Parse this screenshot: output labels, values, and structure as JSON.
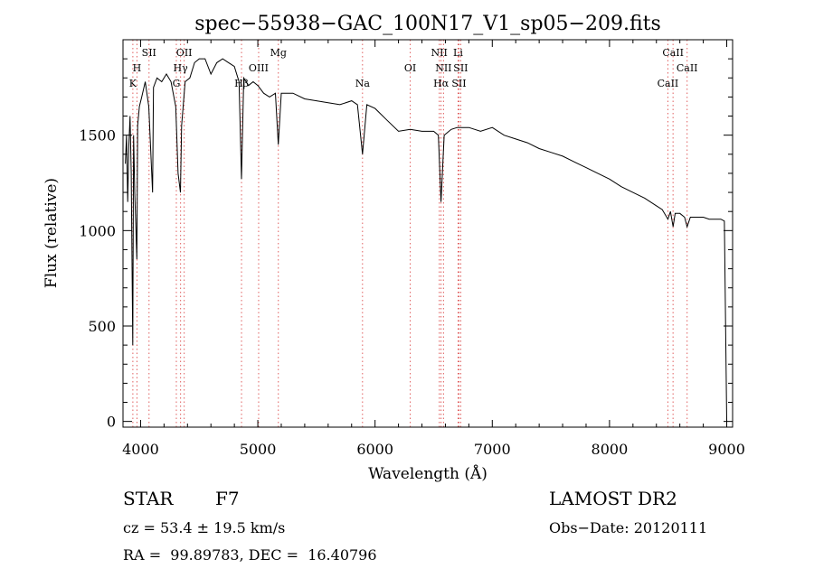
{
  "chart_data": {
    "type": "line",
    "title": "spec−55938−GAC_100N17_V1_sp05−209.fits",
    "xlabel": "Wavelength (Å)",
    "ylabel": "Flux (relative)",
    "xlim": [
      3850,
      9050
    ],
    "ylim": [
      -30,
      2000
    ],
    "x_ticks": [
      4000,
      5000,
      6000,
      7000,
      8000,
      9000
    ],
    "x_tick_labels": [
      "4000",
      "5000",
      "6000",
      "7000",
      "8000",
      "9000"
    ],
    "y_ticks": [
      0,
      500,
      1000,
      1500
    ],
    "y_tick_labels": [
      "0",
      "500",
      "1000",
      "1500"
    ],
    "grid": false,
    "series": [
      {
        "name": "flux",
        "x": [
          3870,
          3880,
          3890,
          3900,
          3910,
          3920,
          3933,
          3940,
          3950,
          3968,
          3975,
          3990,
          4010,
          4040,
          4070,
          4102,
          4110,
          4140,
          4180,
          4220,
          4260,
          4300,
          4320,
          4340,
          4350,
          4380,
          4420,
          4460,
          4500,
          4550,
          4600,
          4650,
          4700,
          4750,
          4800,
          4840,
          4861,
          4880,
          4920,
          4960,
          5000,
          5050,
          5100,
          5150,
          5175,
          5200,
          5250,
          5300,
          5400,
          5500,
          5600,
          5700,
          5800,
          5850,
          5893,
          5930,
          6000,
          6100,
          6200,
          6300,
          6400,
          6500,
          6540,
          6563,
          6590,
          6650,
          6700,
          6800,
          6900,
          7000,
          7100,
          7200,
          7300,
          7400,
          7500,
          7600,
          7700,
          7800,
          7900,
          8000,
          8100,
          8200,
          8300,
          8400,
          8450,
          8498,
          8520,
          8542,
          8560,
          8600,
          8640,
          8662,
          8690,
          8750,
          8800,
          8850,
          8900,
          8950,
          8980,
          9000
        ],
        "y": [
          1350,
          1500,
          1150,
          1450,
          1600,
          1300,
          400,
          1500,
          1200,
          850,
          1550,
          1650,
          1700,
          1780,
          1650,
          1200,
          1750,
          1800,
          1780,
          1820,
          1780,
          1650,
          1300,
          1200,
          1550,
          1780,
          1800,
          1880,
          1900,
          1900,
          1820,
          1880,
          1900,
          1880,
          1860,
          1780,
          1270,
          1800,
          1760,
          1780,
          1760,
          1720,
          1700,
          1720,
          1450,
          1720,
          1720,
          1720,
          1690,
          1680,
          1670,
          1660,
          1680,
          1660,
          1400,
          1660,
          1640,
          1580,
          1520,
          1530,
          1520,
          1520,
          1500,
          1150,
          1500,
          1530,
          1540,
          1540,
          1520,
          1540,
          1500,
          1480,
          1460,
          1430,
          1410,
          1390,
          1360,
          1330,
          1300,
          1270,
          1230,
          1200,
          1170,
          1130,
          1110,
          1060,
          1100,
          1020,
          1090,
          1090,
          1070,
          1020,
          1070,
          1070,
          1070,
          1060,
          1060,
          1060,
          1050,
          0
        ]
      }
    ],
    "line_markers": [
      {
        "label": "K",
        "x": 3934,
        "row": 3
      },
      {
        "label": "H",
        "x": 3969,
        "row": 2
      },
      {
        "label": "SII",
        "x": 4072,
        "row": 1
      },
      {
        "label": "G",
        "x": 4305,
        "row": 3
      },
      {
        "label": "Hγ",
        "x": 4341,
        "row": 2
      },
      {
        "label": "OII",
        "x": 4372,
        "row": 1
      },
      {
        "label": "Hβ",
        "x": 4861,
        "row": 3
      },
      {
        "label": "OIII",
        "x": 5007,
        "row": 2
      },
      {
        "label": "Mg",
        "x": 5175,
        "row": 1
      },
      {
        "label": "Na",
        "x": 5893,
        "row": 3
      },
      {
        "label": "OI",
        "x": 6300,
        "row": 2
      },
      {
        "label": "Hα",
        "x": 6563,
        "row": 3
      },
      {
        "label": "NII",
        "x": 6548,
        "row": 1
      },
      {
        "label": "NII",
        "x": 6584,
        "row": 2
      },
      {
        "label": "Li",
        "x": 6708,
        "row": 1
      },
      {
        "label": "SII",
        "x": 6716,
        "row": 3
      },
      {
        "label": "SII",
        "x": 6731,
        "row": 2
      },
      {
        "label": "CaII",
        "x": 8498,
        "row": 3
      },
      {
        "label": "CaII",
        "x": 8542,
        "row": 1
      },
      {
        "label": "CaII",
        "x": 8662,
        "row": 2
      }
    ]
  },
  "info": {
    "object_class": "STAR",
    "subclass": "F7",
    "redshift_line": "cz = 53.4 ± 19.5 km/s",
    "coordinates_line": "RA =  99.89783, DEC =  16.40796",
    "survey": "LAMOST DR2",
    "obs_date_line": "Obs−Date: 20120111"
  },
  "colors": {
    "axis": "#000000",
    "series": "#000000",
    "marker": "#e06060"
  }
}
